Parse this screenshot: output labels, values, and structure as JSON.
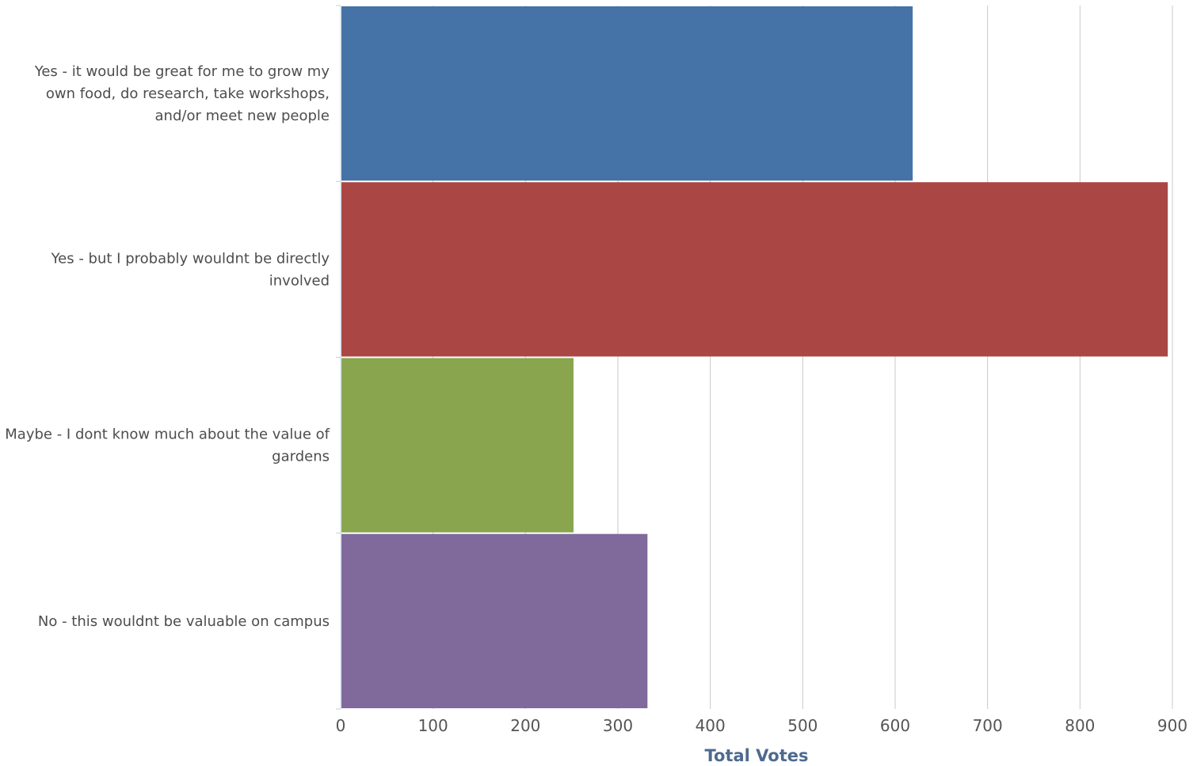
{
  "chart_data": {
    "type": "bar",
    "orientation": "horizontal",
    "categories": [
      "Yes - it would be great for me to grow my own food, do research, take workshops, and/or meet new people",
      "Yes - but I probably wouldnt be directly involved",
      "Maybe - I dont know much about the value of gardens",
      "No - this wouldnt be valuable on campus"
    ],
    "category_lines": [
      [
        "Yes - it would be great for me to grow my",
        "own food, do research, take workshops,",
        "and/or meet new people"
      ],
      [
        "Yes - but I probably wouldnt be directly",
        "involved"
      ],
      [
        "Maybe - I dont know much about the value of",
        "gardens"
      ],
      [
        "No - this wouldnt be valuable on campus"
      ]
    ],
    "values": [
      619,
      895,
      252,
      332
    ],
    "colors": [
      "#4572a7",
      "#aa4643",
      "#89a54e",
      "#80699b"
    ],
    "xlabel": "Total Votes",
    "ylabel": "",
    "xlim": [
      0,
      900
    ],
    "xticks": [
      0,
      100,
      200,
      300,
      400,
      500,
      600,
      700,
      800,
      900
    ],
    "grid": true,
    "legend": "none"
  }
}
